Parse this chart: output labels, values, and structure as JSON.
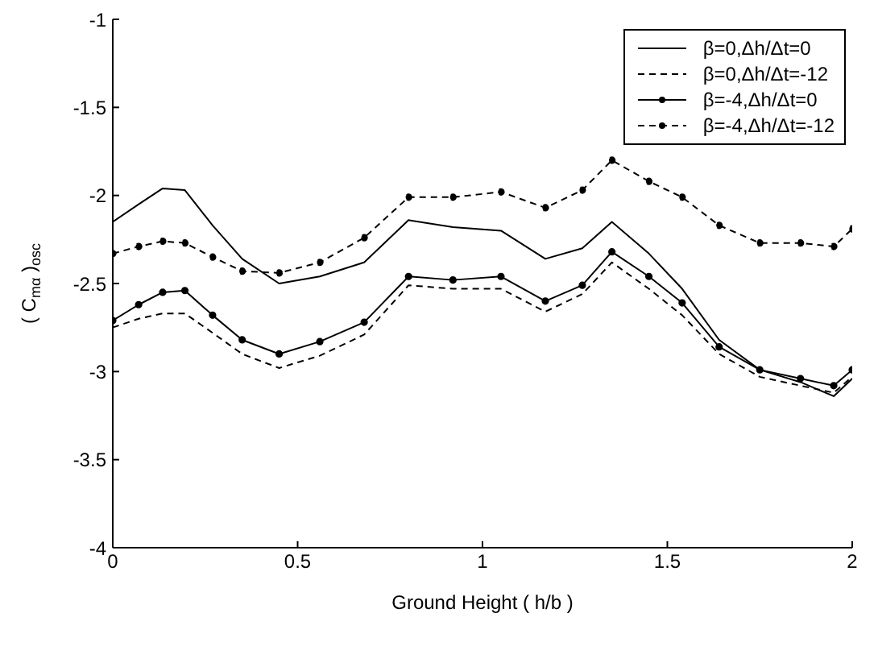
{
  "chart_data": {
    "type": "line",
    "xlabel": "Ground Height ( h/b )",
    "ylabel": "( C$_{mα}$ )$_{osc}$",
    "x": [
      0,
      0.07,
      0.135,
      0.195,
      0.27,
      0.35,
      0.45,
      0.56,
      0.68,
      0.8,
      0.92,
      1.05,
      1.17,
      1.27,
      1.35,
      1.45,
      1.54,
      1.64,
      1.75,
      1.86,
      1.95,
      2.0
    ],
    "series": [
      {
        "name": "β=0,Δh/Δt=0",
        "color": "#000000",
        "line_style": "solid",
        "marker": "none",
        "values": [
          -2.15,
          -2.05,
          -1.96,
          -1.97,
          -2.17,
          -2.36,
          -2.5,
          -2.46,
          -2.38,
          -2.14,
          -2.18,
          -2.2,
          -2.36,
          -2.3,
          -2.15,
          -2.33,
          -2.53,
          -2.82,
          -2.99,
          -3.06,
          -3.14,
          -3.04
        ]
      },
      {
        "name": "β=0,Δh/Δt=-12",
        "color": "#000000",
        "line_style": "dashed",
        "marker": "none",
        "values": [
          -2.75,
          -2.7,
          -2.67,
          -2.67,
          -2.78,
          -2.9,
          -2.98,
          -2.91,
          -2.79,
          -2.51,
          -2.53,
          -2.53,
          -2.66,
          -2.56,
          -2.38,
          -2.53,
          -2.68,
          -2.9,
          -3.03,
          -3.08,
          -3.12,
          -3.03
        ]
      },
      {
        "name": "β=-4,Δh/Δt=0",
        "color": "#000000",
        "line_style": "solid",
        "marker": "circle",
        "values": [
          -2.71,
          -2.62,
          -2.55,
          -2.54,
          -2.68,
          -2.82,
          -2.9,
          -2.83,
          -2.72,
          -2.46,
          -2.48,
          -2.46,
          -2.6,
          -2.51,
          -2.32,
          -2.46,
          -2.61,
          -2.86,
          -2.99,
          -3.04,
          -3.08,
          -2.99
        ]
      },
      {
        "name": "β=-4,Δh/Δt=-12",
        "color": "#000000",
        "line_style": "dashed",
        "marker": "circle",
        "values": [
          -2.33,
          -2.29,
          -2.26,
          -2.27,
          -2.35,
          -2.43,
          -2.44,
          -2.38,
          -2.24,
          -2.01,
          -2.01,
          -1.98,
          -2.07,
          -1.97,
          -1.8,
          -1.92,
          -2.01,
          -2.17,
          -2.27,
          -2.27,
          -2.29,
          -2.19
        ]
      }
    ],
    "xlim": [
      0,
      2
    ],
    "xticks": [
      0,
      0.5,
      1,
      1.5,
      2
    ],
    "ylim": [
      -4,
      -1
    ],
    "yticks": [
      -4,
      -3.5,
      -3,
      -2.5,
      -2,
      -1.5,
      -1
    ],
    "grid": false,
    "legend": "top right"
  }
}
